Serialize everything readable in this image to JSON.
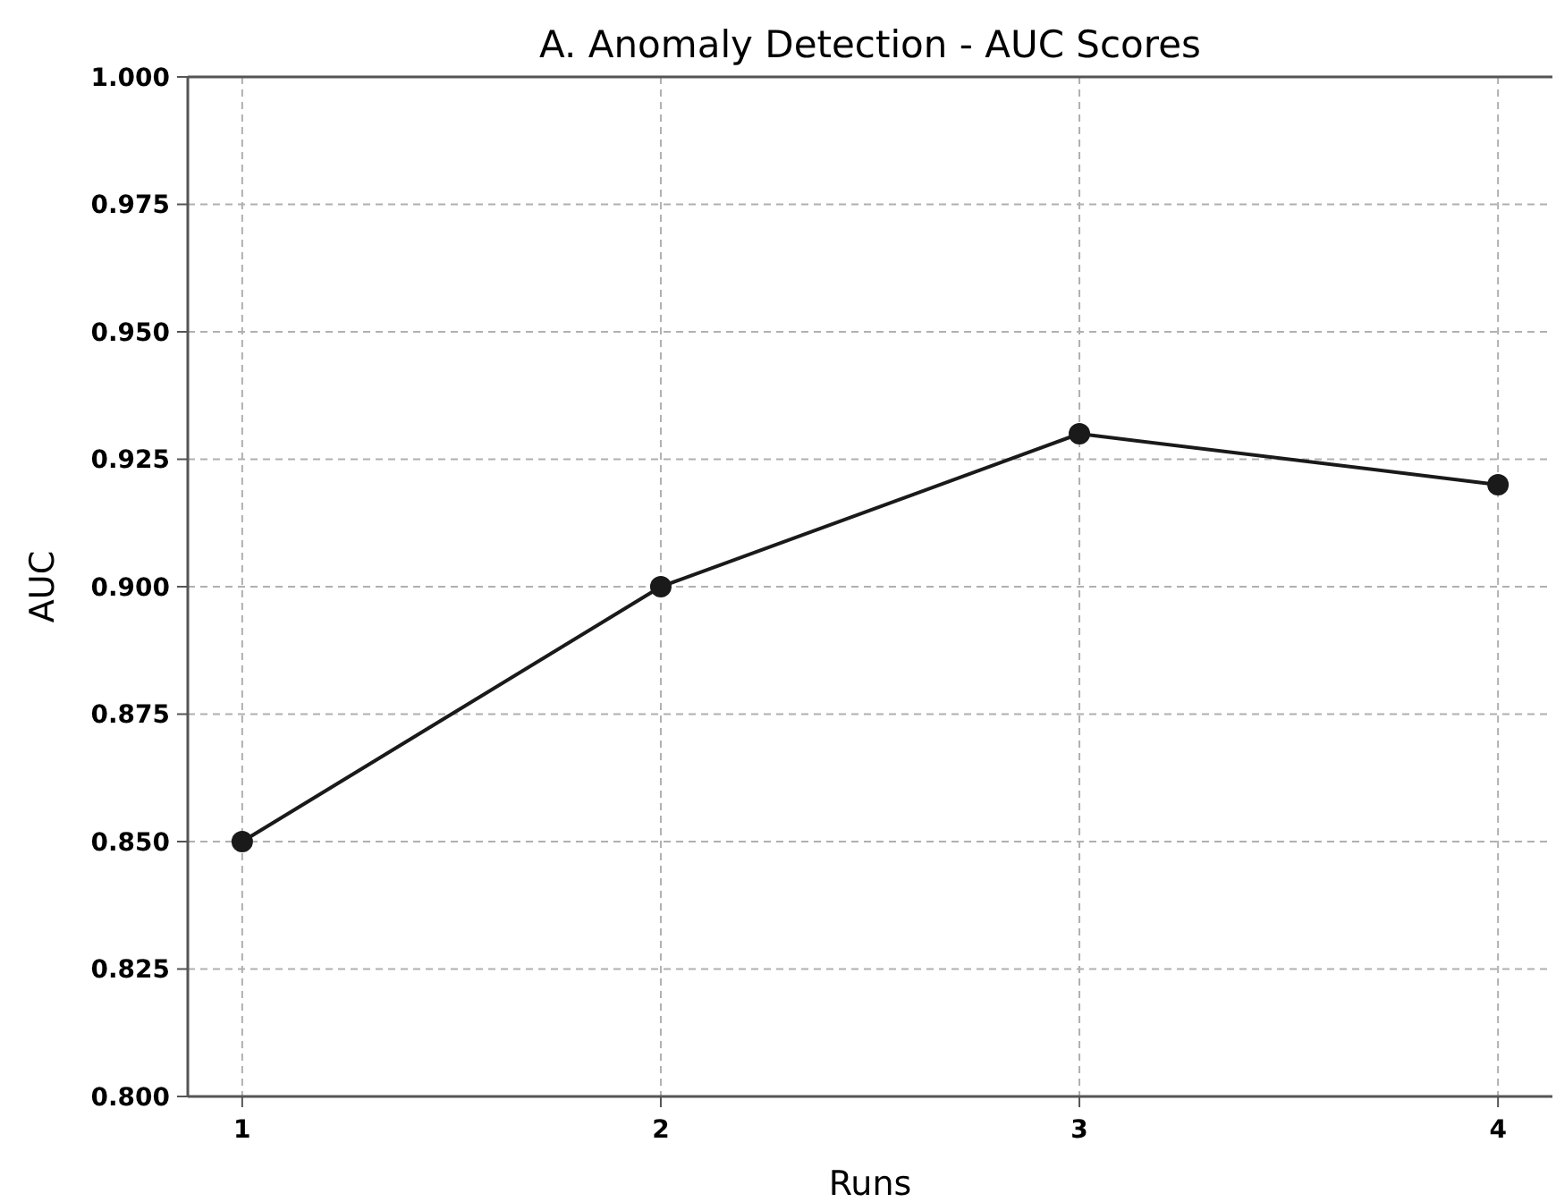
{
  "chart_data": {
    "type": "line",
    "title": "A. Anomaly Detection - AUC Scores",
    "xlabel": "Runs",
    "ylabel": "AUC",
    "x": [
      1,
      2,
      3,
      4
    ],
    "series": [
      {
        "color": "#1a1a1a",
        "values": [
          0.85,
          0.9,
          0.93,
          0.92
        ]
      }
    ],
    "xlim": [
      0.87,
      4.13
    ],
    "xticks": [
      1,
      2,
      3,
      4
    ],
    "ylim": [
      0.8,
      1.0
    ],
    "yticks": [
      {
        "value": 0.8,
        "label": "0.800"
      },
      {
        "value": 0.825,
        "label": "0.825"
      },
      {
        "value": 0.85,
        "label": "0.850"
      },
      {
        "value": 0.875,
        "label": "0.875"
      },
      {
        "value": 0.9,
        "label": "0.900"
      },
      {
        "value": 0.925,
        "label": "0.925"
      },
      {
        "value": 0.95,
        "label": "0.950"
      },
      {
        "value": 0.975,
        "label": "0.975"
      },
      {
        "value": 1.0,
        "label": "1.000"
      }
    ],
    "grid": true,
    "marker": "circle",
    "line_style": "solid"
  }
}
